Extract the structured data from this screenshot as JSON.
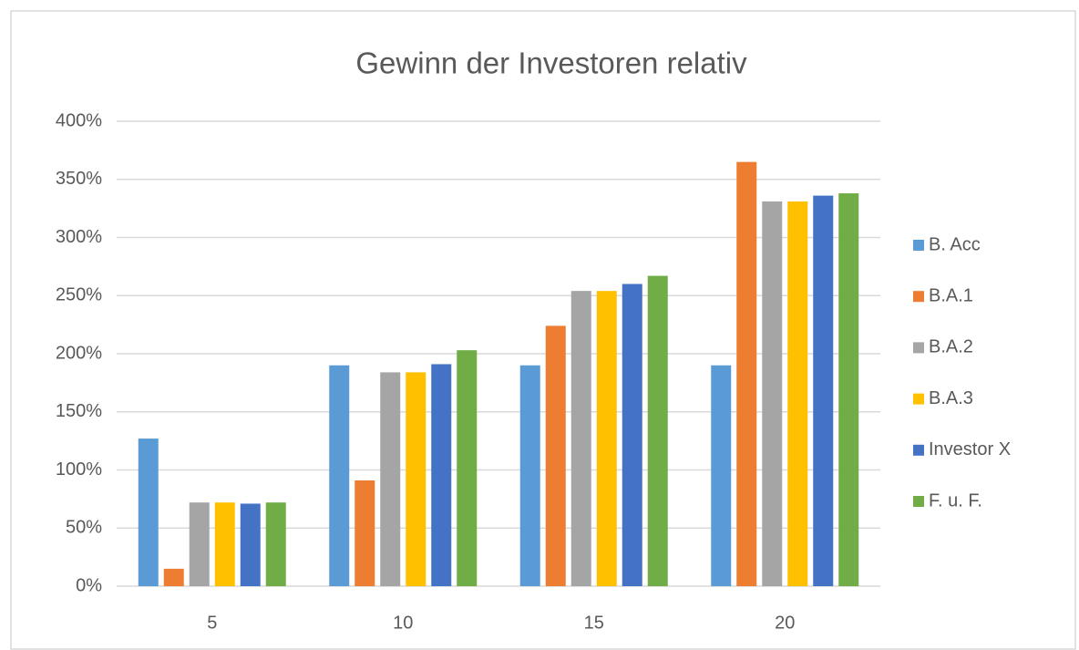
{
  "chart_data": {
    "type": "bar",
    "title": "Gewinn der Investoren relativ",
    "categories": [
      "5",
      "10",
      "15",
      "20"
    ],
    "series": [
      {
        "name": "B. Acc",
        "color": "#5b9bd5",
        "values": [
          127,
          190,
          190,
          190
        ]
      },
      {
        "name": "B.A.1",
        "color": "#ed7d31",
        "values": [
          15,
          91,
          224,
          365
        ]
      },
      {
        "name": "B.A.2",
        "color": "#a5a5a5",
        "values": [
          72,
          184,
          254,
          331
        ]
      },
      {
        "name": "B.A.3",
        "color": "#ffc000",
        "values": [
          72,
          184,
          254,
          331
        ]
      },
      {
        "name": "Investor X",
        "color": "#4472c4",
        "values": [
          71,
          191,
          260,
          336
        ]
      },
      {
        "name": "F. u. F.",
        "color": "#70ad47",
        "values": [
          72,
          203,
          267,
          338
        ]
      }
    ],
    "ylim": [
      0,
      400
    ],
    "yticks": [
      {
        "value": 0,
        "label": "0%"
      },
      {
        "value": 50,
        "label": "50%"
      },
      {
        "value": 100,
        "label": "100%"
      },
      {
        "value": 150,
        "label": "150%"
      },
      {
        "value": 200,
        "label": "200%"
      },
      {
        "value": 250,
        "label": "250%"
      },
      {
        "value": 300,
        "label": "300%"
      },
      {
        "value": 350,
        "label": "350%"
      },
      {
        "value": 400,
        "label": "400%"
      }
    ],
    "grid": true,
    "legend": "right"
  }
}
